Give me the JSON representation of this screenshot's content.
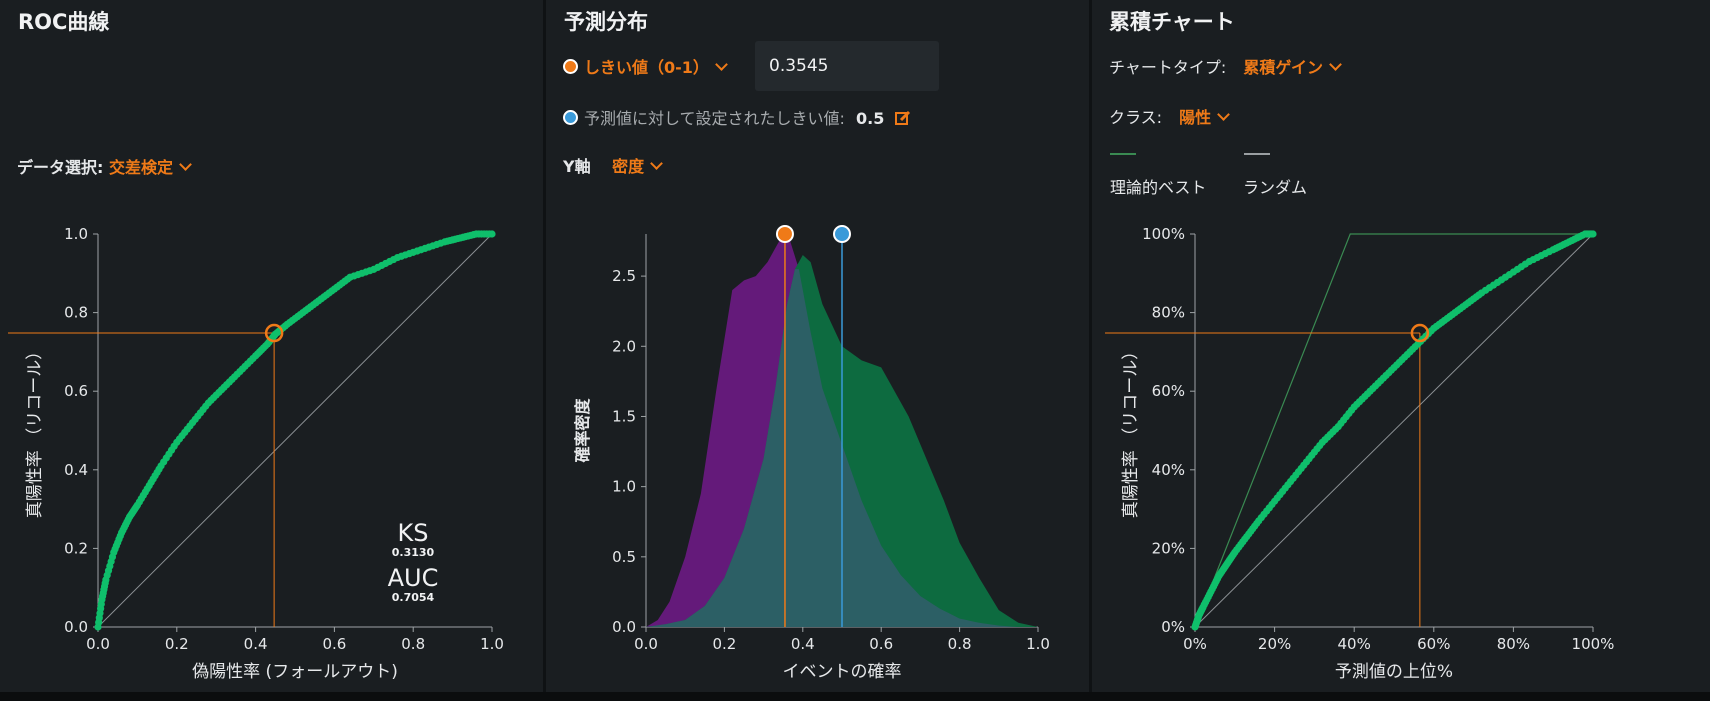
{
  "roc": {
    "title": "ROC曲線",
    "data_select_label": "データ選択:",
    "data_select_value": "交差検定",
    "chart_data": {
      "type": "line",
      "title": "",
      "xlabel": "偽陽性率 (フォールアウト)",
      "ylabel": "真陽性率 （リコール）",
      "xlim": [
        0,
        1
      ],
      "ylim": [
        0,
        1
      ],
      "x_ticks": [
        "0.0",
        "0.2",
        "0.4",
        "0.6",
        "0.8",
        "1.0"
      ],
      "y_ticks": [
        "0.0",
        "0.2",
        "0.4",
        "0.6",
        "0.8",
        "1.0"
      ],
      "series": [
        {
          "x": [
            0,
            0.01,
            0.02,
            0.04,
            0.06,
            0.08,
            0.1,
            0.13,
            0.16,
            0.2,
            0.24,
            0.28,
            0.32,
            0.36,
            0.4,
            0.43,
            0.45,
            0.48,
            0.52,
            0.56,
            0.6,
            0.64,
            0.7,
            0.76,
            0.82,
            0.88,
            0.92,
            0.96,
            1.0
          ],
          "y": [
            0,
            0.07,
            0.12,
            0.19,
            0.24,
            0.28,
            0.31,
            0.36,
            0.41,
            0.47,
            0.52,
            0.57,
            0.61,
            0.65,
            0.69,
            0.72,
            0.745,
            0.77,
            0.8,
            0.83,
            0.86,
            0.89,
            0.91,
            0.94,
            0.96,
            0.98,
            0.99,
            1.0,
            1.0
          ]
        },
        {
          "x": [
            0,
            1
          ],
          "y": [
            0,
            1
          ]
        }
      ],
      "threshold_point": {
        "x": 0.447,
        "y": 0.748
      },
      "annotations": [
        {
          "label": "KS",
          "value": "0.3130"
        },
        {
          "label": "AUC",
          "value": "0.7054"
        }
      ]
    }
  },
  "pred": {
    "title": "予測分布",
    "threshold_label": "しきい値（0-1）",
    "threshold_value": "0.3545",
    "set_threshold_label": "予測値に対して設定されたしきい値:",
    "set_threshold_value": "0.5",
    "y_axis_label": "Y軸",
    "y_axis_value": "密度",
    "colors": {
      "threshold": "#ef7a18",
      "set_threshold": "#3a9ad9",
      "negative": "#641a7a",
      "positive": "#0d6b40",
      "overlap": "#2c5f65"
    },
    "chart_data": {
      "type": "area",
      "title": "",
      "xlabel": "イベントの確率",
      "ylabel": "確率密度",
      "xlim": [
        0,
        1
      ],
      "ylim": [
        0,
        2.8
      ],
      "x_ticks": [
        "0.0",
        "0.2",
        "0.4",
        "0.6",
        "0.8",
        "1.0"
      ],
      "y_ticks": [
        "0.0",
        "0.5",
        "1.0",
        "1.5",
        "2.0",
        "2.5"
      ],
      "series": [
        {
          "x": [
            0,
            0.03,
            0.06,
            0.1,
            0.14,
            0.18,
            0.22,
            0.25,
            0.28,
            0.31,
            0.34,
            0.36,
            0.39,
            0.42,
            0.45,
            0.5,
            0.55,
            0.6,
            0.65,
            0.7,
            0.75,
            0.8,
            0.85,
            0.9,
            0.95,
            1.0
          ],
          "y": [
            0,
            0.05,
            0.18,
            0.5,
            0.95,
            1.7,
            2.4,
            2.47,
            2.5,
            2.6,
            2.75,
            2.82,
            2.55,
            2.1,
            1.7,
            1.3,
            0.9,
            0.58,
            0.37,
            0.22,
            0.13,
            0.06,
            0.03,
            0.01,
            0,
            0
          ]
        },
        {
          "x": [
            0,
            0.05,
            0.1,
            0.15,
            0.2,
            0.25,
            0.3,
            0.33,
            0.36,
            0.38,
            0.4,
            0.42,
            0.45,
            0.5,
            0.55,
            0.6,
            0.63,
            0.67,
            0.7,
            0.73,
            0.76,
            0.8,
            0.85,
            0.9,
            0.95,
            1.0
          ],
          "y": [
            0,
            0.02,
            0.05,
            0.15,
            0.35,
            0.7,
            1.2,
            1.7,
            2.3,
            2.55,
            2.65,
            2.6,
            2.3,
            2.0,
            1.9,
            1.85,
            1.7,
            1.5,
            1.3,
            1.1,
            0.9,
            0.6,
            0.35,
            0.12,
            0.03,
            0
          ]
        }
      ],
      "threshold_line": 0.3545,
      "set_threshold_line": 0.5
    }
  },
  "cum": {
    "title": "累積チャート",
    "chart_type_label": "チャートタイプ:",
    "chart_type_value": "累積ゲイン",
    "class_label": "クラス:",
    "class_value": "陽性",
    "legend": [
      "理論的ベスト",
      "ランダム"
    ],
    "legend_colors": [
      "#3a8a52",
      "#9a9fa2"
    ],
    "chart_data": {
      "type": "line",
      "title": "",
      "xlabel": "予測値の上位%",
      "ylabel": "真陽性率 （リコール）",
      "xlim": [
        0,
        100
      ],
      "ylim": [
        0,
        100
      ],
      "x_ticks": [
        "0%",
        "20%",
        "40%",
        "60%",
        "80%",
        "100%"
      ],
      "y_ticks": [
        "0%",
        "20%",
        "40%",
        "60%",
        "80%",
        "100%"
      ],
      "series": [
        {
          "x": [
            0,
            1,
            2,
            4,
            6,
            8,
            10,
            13,
            16,
            20,
            24,
            28,
            32,
            36,
            40,
            44,
            48,
            52,
            56,
            60,
            64,
            68,
            72,
            78,
            84,
            90,
            94,
            98,
            100
          ],
          "y": [
            0,
            3,
            5,
            9,
            13,
            16,
            19,
            23,
            27,
            32,
            37,
            42,
            47,
            51,
            56,
            60,
            64,
            68,
            72,
            76,
            79,
            82,
            85,
            89,
            93,
            96,
            98,
            100,
            100
          ]
        },
        {
          "x": [
            0,
            39,
            100
          ],
          "y": [
            0,
            100,
            100
          ]
        },
        {
          "x": [
            0,
            100
          ],
          "y": [
            0,
            100
          ]
        }
      ],
      "threshold_point": {
        "x": 56.5,
        "y": 74.8
      }
    }
  }
}
